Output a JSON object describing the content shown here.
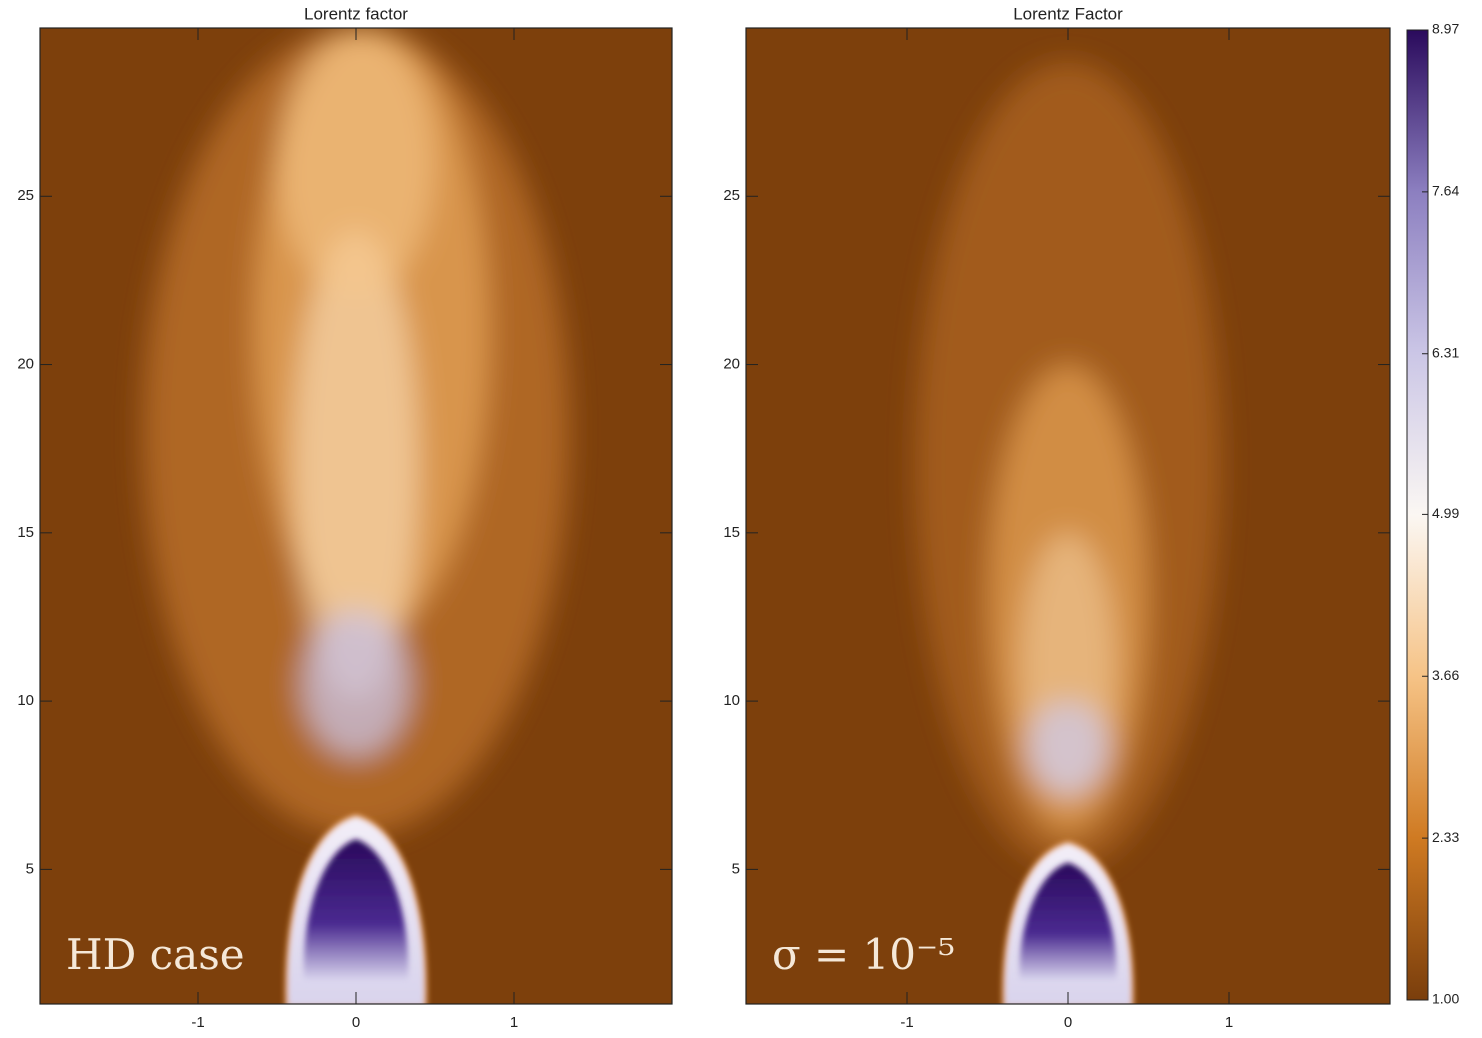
{
  "chart_data": [
    {
      "type": "heatmap",
      "title": "Lorentz factor",
      "annotation": "HD case",
      "xlim": [
        -2,
        2
      ],
      "ylim": [
        1,
        30
      ],
      "xticks": [
        -1,
        0,
        1
      ],
      "yticks": [
        5,
        10,
        15,
        20,
        25
      ]
    },
    {
      "type": "heatmap",
      "title": "Lorentz Factor",
      "annotation": "σ = 10⁻⁵",
      "xlim": [
        -2,
        2
      ],
      "ylim": [
        1,
        30
      ],
      "xticks": [
        -1,
        0,
        1
      ],
      "yticks": [
        5,
        10,
        15,
        20,
        25
      ],
      "colorbar": {
        "clim": [
          1,
          8.97
        ],
        "ticks": [
          {
            "value": 1,
            "label": "1.00"
          },
          {
            "value": 2.33,
            "label": "2.33"
          },
          {
            "value": 3.66,
            "label": "3.66"
          },
          {
            "value": 4.99,
            "label": "4.99"
          },
          {
            "value": 6.31,
            "label": "6.31"
          },
          {
            "value": 7.64,
            "label": "7.64"
          },
          {
            "value": 8.97,
            "label": "8.97"
          }
        ],
        "colors": [
          "#7a3e0c",
          "#cf7a22",
          "#f6c386",
          "#fbf7f3",
          "#cbc6e6",
          "#8c7fc0",
          "#2a0a5c"
        ]
      }
    }
  ]
}
